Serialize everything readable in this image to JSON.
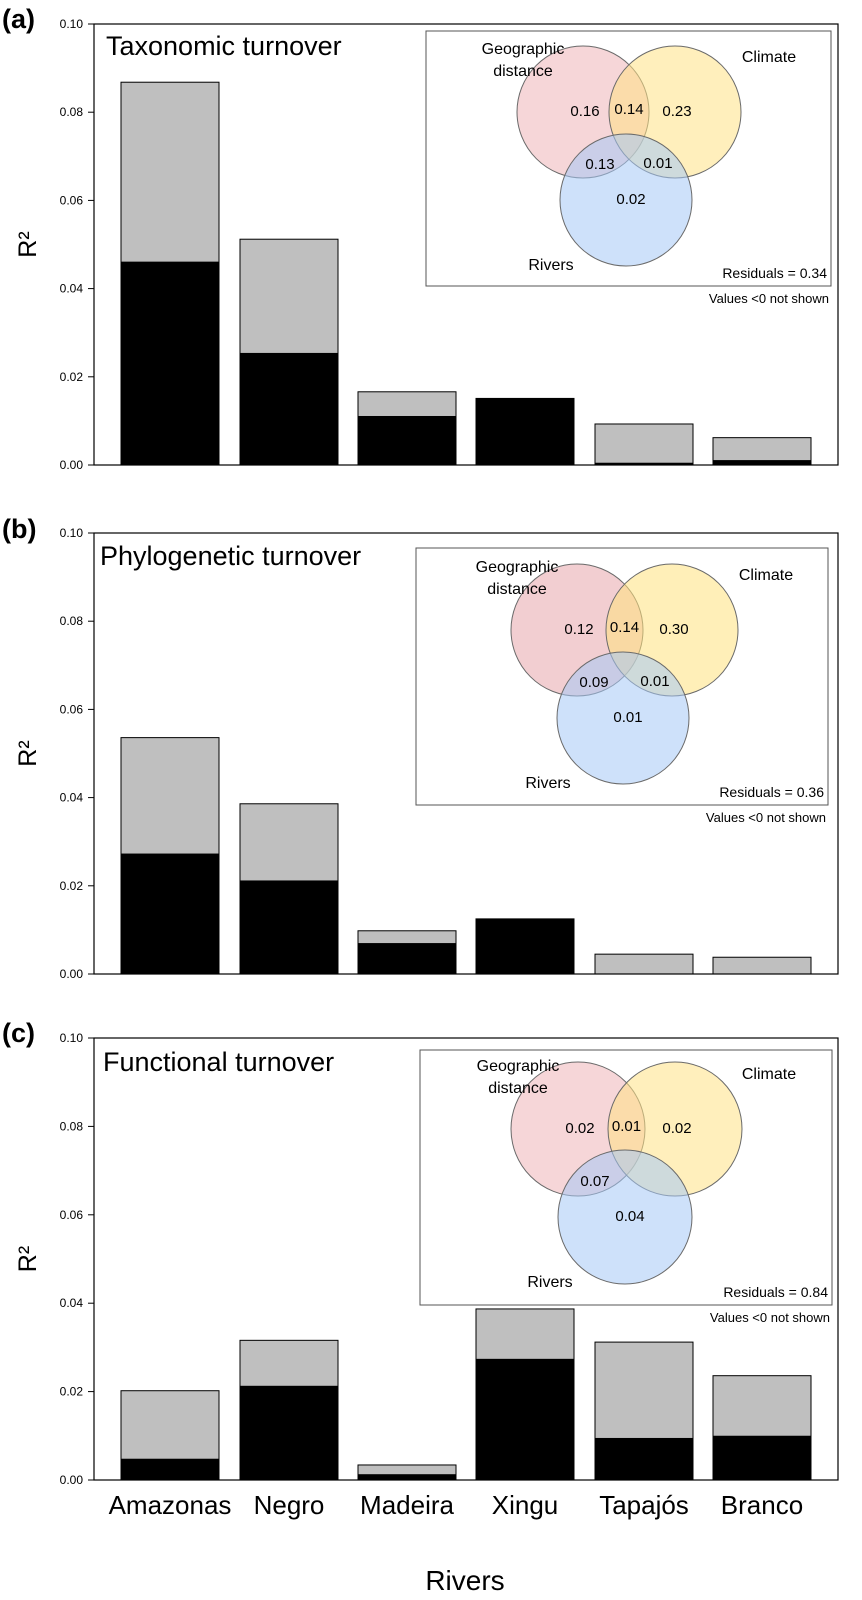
{
  "chart_data": [
    {
      "type": "bar",
      "stacked": true,
      "panel_label": "(a)",
      "title": "Taxonomic turnover",
      "ylabel": "R²",
      "ylim": [
        0,
        0.1
      ],
      "yticks": [
        "0.00",
        "0.02",
        "0.04",
        "0.06",
        "0.08",
        "0.10"
      ],
      "categories": [
        "Amazonas",
        "Negro",
        "Madeira",
        "Xingu",
        "Tapajós",
        "Branco"
      ],
      "series": [
        {
          "color": "#000000",
          "values": [
            0.046,
            0.0253,
            0.011,
            0.0151,
            0.0004,
            0.001
          ]
        },
        {
          "color": "#bfbfbf",
          "values": [
            0.0408,
            0.0259,
            0.0056,
            0.0,
            0.0089,
            0.0052
          ]
        }
      ],
      "venn": {
        "sets": {
          "geo": "Geographic distance",
          "climate": "Climate",
          "rivers": "Rivers"
        },
        "colors": {
          "geo": "#eeb4b8",
          "climate": "#ffe285",
          "rivers": "#a6c8f5"
        },
        "values": {
          "geo_only": "0.16",
          "geo_climate": "0.14",
          "climate_only": "0.23",
          "geo_rivers": "0.13",
          "climate_rivers": "0.01",
          "rivers_only": "0.02"
        },
        "residuals": "Residuals = 0.34",
        "note": "Values <0 not shown"
      }
    },
    {
      "type": "bar",
      "stacked": true,
      "panel_label": "(b)",
      "title": "Phylogenetic turnover",
      "ylabel": "R²",
      "ylim": [
        0,
        0.1
      ],
      "yticks": [
        "0.00",
        "0.02",
        "0.04",
        "0.06",
        "0.08",
        "0.10"
      ],
      "categories": [
        "Amazonas",
        "Negro",
        "Madeira",
        "Xingu",
        "Tapajós",
        "Branco"
      ],
      "series": [
        {
          "color": "#000000",
          "values": [
            0.0272,
            0.0211,
            0.0069,
            0.0125,
            0.0,
            0.0
          ]
        },
        {
          "color": "#bfbfbf",
          "values": [
            0.0264,
            0.0175,
            0.0029,
            0.0,
            0.0045,
            0.0038
          ]
        }
      ],
      "venn": {
        "sets": {
          "geo": "Geographic distance",
          "climate": "Climate",
          "rivers": "Rivers"
        },
        "colors": {
          "geo": "#e8a5ab",
          "climate": "#ffe17d",
          "rivers": "#a6c8f5"
        },
        "values": {
          "geo_only": "0.12",
          "geo_climate": "0.14",
          "climate_only": "0.30",
          "geo_rivers": "0.09",
          "climate_rivers": "0.01",
          "rivers_only": "0.01"
        },
        "residuals": "Residuals = 0.36",
        "note": "Values <0 not shown"
      }
    },
    {
      "type": "bar",
      "stacked": true,
      "panel_label": "(c)",
      "title": "Functional turnover",
      "ylabel": "R²",
      "xlabel": "Rivers",
      "ylim": [
        0,
        0.1
      ],
      "yticks": [
        "0.00",
        "0.02",
        "0.04",
        "0.06",
        "0.08",
        "0.10"
      ],
      "categories": [
        "Amazonas",
        "Negro",
        "Madeira",
        "Xingu",
        "Tapajós",
        "Branco"
      ],
      "series": [
        {
          "color": "#000000",
          "values": [
            0.0047,
            0.0212,
            0.0012,
            0.0273,
            0.0094,
            0.0099
          ]
        },
        {
          "color": "#bfbfbf",
          "values": [
            0.0155,
            0.0104,
            0.0022,
            0.0114,
            0.0218,
            0.0137
          ]
        }
      ],
      "venn": {
        "sets": {
          "geo": "Geographic distance",
          "climate": "Climate",
          "rivers": "Rivers"
        },
        "colors": {
          "geo": "#eeb4b8",
          "climate": "#ffe285",
          "rivers": "#a6c8f5"
        },
        "values": {
          "geo_only": "0.02",
          "geo_climate": "0.01",
          "climate_only": "0.02",
          "geo_rivers": "0.07",
          "climate_rivers": "",
          "rivers_only": "0.04"
        },
        "residuals": "Residuals = 0.84",
        "note": "Values <0 not shown"
      }
    }
  ]
}
